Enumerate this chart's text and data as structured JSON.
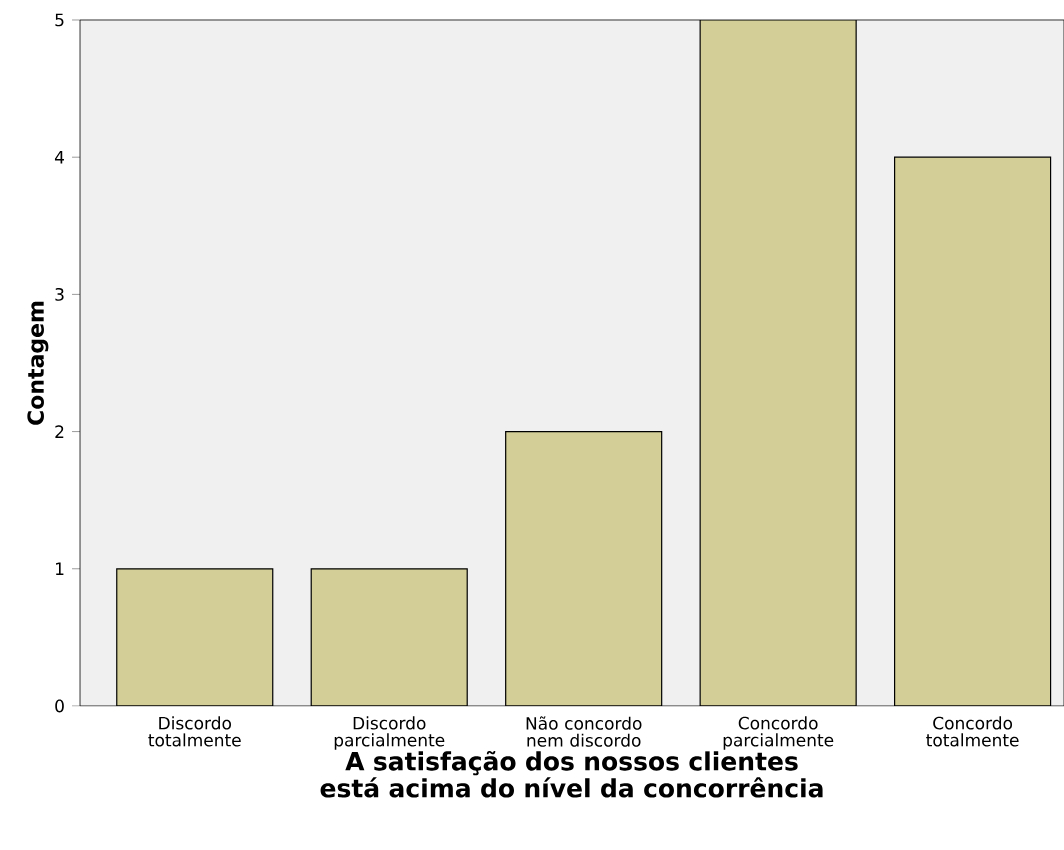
{
  "chart_data": {
    "type": "bar",
    "xlabel": "A satisfação dos nossos clientes está acima do nível da concorrência",
    "ylabel": "Contagem",
    "categories": [
      "Discordo totalmente",
      "Discordo parcialmente",
      "Não concordo nem discordo",
      "Concordo parcialmente",
      "Concordo totalmente"
    ],
    "values": [
      1,
      1,
      2,
      5,
      4
    ],
    "color": "#d3ce97",
    "ylim": [
      0,
      5
    ],
    "yticks": [
      0,
      1,
      2,
      3,
      4,
      5
    ],
    "grid": false
  }
}
